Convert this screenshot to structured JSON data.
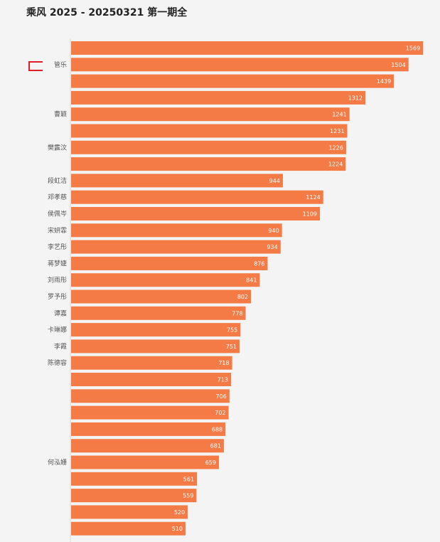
{
  "chart_data": {
    "type": "bar",
    "orientation": "horizontal",
    "title": "乘风 2025 - 20250321 第一期全",
    "xlabel": "",
    "ylabel": "",
    "xlim": [
      0,
      1600
    ],
    "grid": false,
    "legend": "none",
    "bar_color": "#f47b45",
    "highlight_color": "#e11d2a",
    "categories": [
      "",
      "管乐",
      "",
      "",
      "曹颖",
      "",
      "樊露汶",
      "",
      "段虹洁",
      "邓孝慈",
      "侯佩岑",
      "宋妍霏",
      "李艺彤",
      "蒋梦婕",
      "刘雨彤",
      "罗予彤",
      "谭嘉",
      "卡琳娜",
      "李霞",
      "陈德容",
      "",
      "",
      "",
      "",
      "",
      "何泓姗",
      "",
      "",
      "",
      ""
    ],
    "values": [
      1569,
      1504,
      1439,
      1312,
      1241,
      1231,
      1226,
      1224,
      944,
      1124,
      1109,
      940,
      934,
      876,
      841,
      802,
      778,
      755,
      751,
      718,
      713,
      706,
      702,
      688,
      681,
      659,
      561,
      559,
      520,
      510
    ],
    "value_labels": [
      "1569",
      "1504",
      "1439",
      "1312",
      "1241",
      "1231",
      "1226",
      "1224",
      "944",
      "1124",
      "1109",
      "940",
      "934",
      "876",
      "841",
      "802",
      "778",
      "755",
      "751",
      "718",
      "713",
      "706",
      "702",
      "688",
      "681",
      "659",
      "561",
      "559",
      "520",
      "510"
    ],
    "highlight_index": 1
  }
}
